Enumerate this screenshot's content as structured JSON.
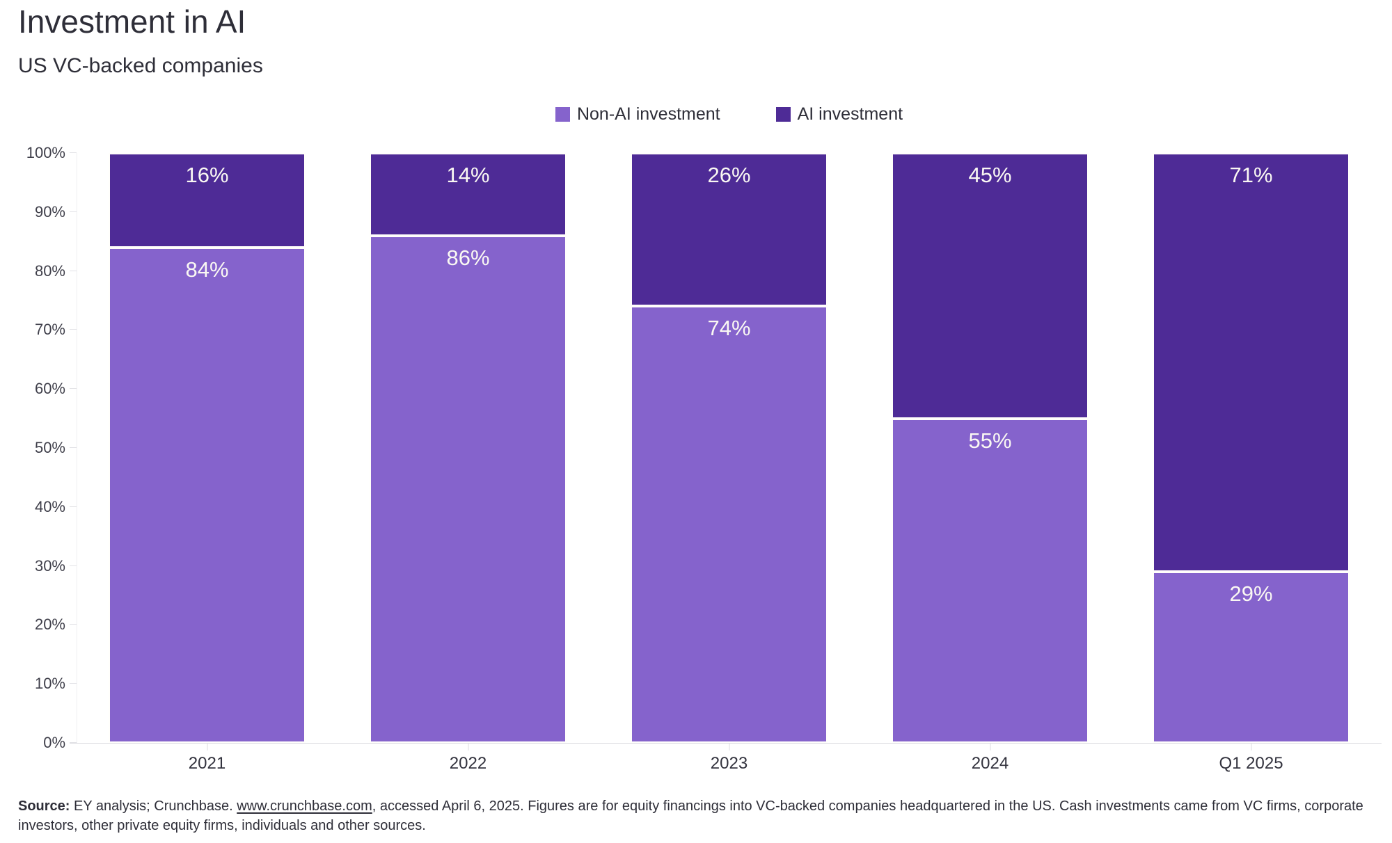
{
  "header": {
    "title": "Investment in AI",
    "subtitle": "US VC-backed companies"
  },
  "colors": {
    "non_ai": "#8563CC",
    "ai": "#4E2B96",
    "text": "#2e2e38",
    "axis_text": "#3f3f4a",
    "axis_line": "#d8d8dc",
    "segment_divider": "#ffffff",
    "bar_value_text": "#faf8f3"
  },
  "chart_data": {
    "type": "bar",
    "stacked": true,
    "title": "Investment in AI",
    "subtitle": "US VC-backed companies",
    "categories": [
      "2021",
      "2022",
      "2023",
      "2024",
      "Q1 2025"
    ],
    "series": [
      {
        "name": "Non-AI investment",
        "color": "#8563CC",
        "values": [
          84,
          86,
          74,
          55,
          29
        ]
      },
      {
        "name": "AI investment",
        "color": "#4E2B96",
        "values": [
          16,
          14,
          26,
          45,
          71
        ]
      }
    ],
    "stack_order_top_to_bottom": [
      "AI investment",
      "Non-AI investment"
    ],
    "value_suffix": "%",
    "ylim": [
      0,
      100
    ],
    "y_ticks": [
      "0%",
      "10%",
      "20%",
      "30%",
      "40%",
      "50%",
      "60%",
      "70%",
      "80%",
      "90%",
      "100%"
    ],
    "xlabel": "",
    "ylabel": "",
    "grid": false,
    "legend_position": "top-center",
    "data_labels": {
      "2021": {
        "Non-AI investment": "84%",
        "AI investment": "16%"
      },
      "2022": {
        "Non-AI investment": "86%",
        "AI investment": "14%"
      },
      "2023": {
        "Non-AI investment": "74%",
        "AI investment": "26%"
      },
      "2024": {
        "Non-AI investment": "55%",
        "AI investment": "45%"
      },
      "Q1 2025": {
        "Non-AI investment": "29%",
        "AI investment": "71%"
      }
    }
  },
  "source": {
    "label": "Source:",
    "text_before_link": " EY analysis; Crunchbase. ",
    "link_text": "www.crunchbase.com",
    "text_after_link": ", accessed April 6, 2025. Figures are for equity financings into VC-backed companies headquartered in the US. Cash investments came from VC firms, corporate investors, other private equity firms, individuals and other sources."
  }
}
